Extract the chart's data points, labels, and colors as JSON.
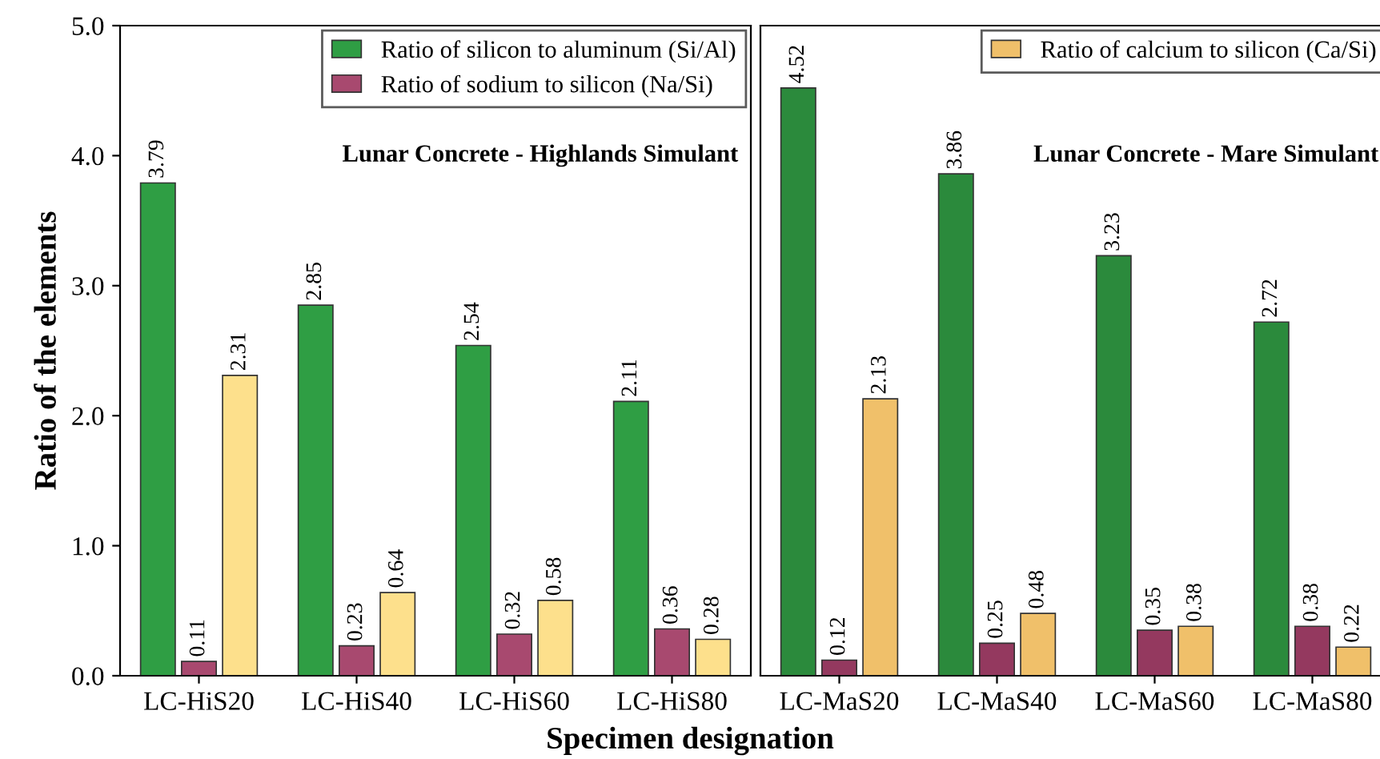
{
  "chart_data": [
    {
      "type": "bar",
      "xlabel": "Specimen designation",
      "ylabel": "Ratio of the elements",
      "categories": [
        "LC-HiS20",
        "LC-HiS40",
        "LC-HiS60",
        "LC-HiS80"
      ],
      "ylim": [
        0,
        5
      ],
      "yticks": [
        {
          "value": 0,
          "label": "0.0"
        },
        {
          "value": 1,
          "label": "1.0"
        },
        {
          "value": 2,
          "label": "2.0"
        },
        {
          "value": 3,
          "label": "3.0"
        },
        {
          "value": 4,
          "label": "4.0"
        },
        {
          "value": 5,
          "label": "5.0"
        }
      ],
      "grid": false,
      "legend": "top right",
      "data_labels": true,
      "annotations": [
        "Lunar Concrete - Highlands Simulant"
      ],
      "series": [
        {
          "name": "Ratio of silicon to aluminum (Si/Al)",
          "color": "#2f9e44",
          "values": [
            3.79,
            2.85,
            2.54,
            2.11
          ]
        },
        {
          "name": "Ratio of sodium to silicon (Na/Si)",
          "color": "#a8496f",
          "values": [
            0.11,
            0.23,
            0.32,
            0.36
          ]
        },
        {
          "color": "#fde08c",
          "values": [
            2.31,
            0.64,
            0.58,
            0.28
          ]
        }
      ]
    },
    {
      "type": "bar",
      "categories": [
        "LC-MaS20",
        "LC-MaS40",
        "LC-MaS60",
        "LC-MaS80"
      ],
      "ylim": [
        0,
        5
      ],
      "tick_labels": "x",
      "grid": false,
      "legend": "top right",
      "data_labels": true,
      "annotations": [
        "Lunar Concrete - Mare Simulant"
      ],
      "series": [
        {
          "color": "#2b8a3c",
          "values": [
            4.52,
            3.86,
            3.23,
            2.72
          ]
        },
        {
          "color": "#94395f",
          "values": [
            0.12,
            0.25,
            0.35,
            0.38
          ]
        },
        {
          "name": "Ratio of calcium to silicon (Ca/Si)",
          "color": "#f0c06a",
          "values": [
            2.13,
            0.48,
            0.38,
            0.22
          ]
        }
      ]
    }
  ]
}
